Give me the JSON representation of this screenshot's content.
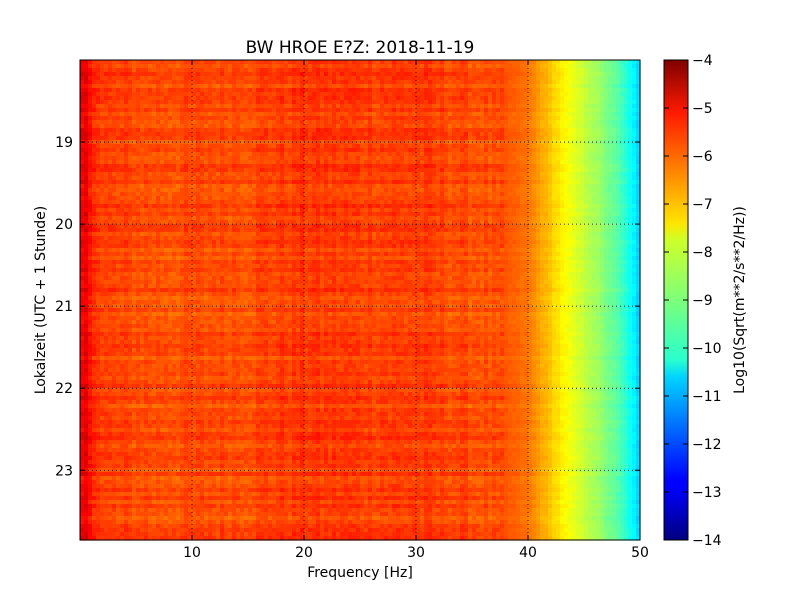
{
  "chart_data": {
    "type": "heatmap",
    "title": "BW HROE E?Z: 2018-11-19",
    "xlabel": "Frequency [Hz]",
    "ylabel": "Lokalzeit (UTC + 1 Stunde)",
    "xlim": [
      0,
      50
    ],
    "ylim": [
      18.0,
      23.85
    ],
    "y_inverted": true,
    "x_ticks": [
      10,
      20,
      30,
      40,
      50
    ],
    "x_tick_labels": [
      "10",
      "20",
      "30",
      "40",
      "50"
    ],
    "y_ticks": [
      19,
      20,
      21,
      22,
      23
    ],
    "y_tick_labels": [
      "19",
      "20",
      "21",
      "22",
      "23"
    ],
    "grid": true,
    "colormap": "jet",
    "colorbar": {
      "label": "Log10(Sqrt(m**2/s**2/Hz))",
      "range": [
        -14,
        -4
      ],
      "ticks": [
        -4,
        -5,
        -6,
        -7,
        -8,
        -9,
        -10,
        -11,
        -12,
        -13,
        -14
      ],
      "tick_labels": [
        "−4",
        "−5",
        "−6",
        "−7",
        "−8",
        "−9",
        "−10",
        "−11",
        "−12",
        "−13",
        "−14"
      ]
    },
    "level_profile": {
      "frequency_hz": [
        0,
        0.5,
        1.0,
        2,
        6,
        10,
        15,
        20,
        25,
        30,
        35,
        38,
        40,
        41,
        42,
        43,
        44,
        45,
        46,
        47,
        48,
        49,
        50
      ],
      "log10_amplitude": [
        -5.3,
        -5.1,
        -5.4,
        -5.9,
        -6.0,
        -6.0,
        -5.95,
        -5.8,
        -5.85,
        -5.85,
        -6.0,
        -6.1,
        -6.4,
        -6.8,
        -7.2,
        -7.6,
        -8.0,
        -8.3,
        -8.6,
        -9.0,
        -9.4,
        -10.0,
        -10.8
      ]
    }
  }
}
